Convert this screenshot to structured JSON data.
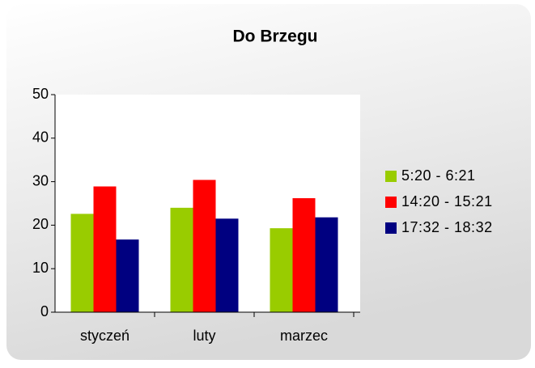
{
  "chart_data": {
    "type": "bar",
    "title": "Do Brzegu",
    "categories": [
      "styczeń",
      "luty",
      "marzec"
    ],
    "series": [
      {
        "name": "5:20 - 6:21",
        "color": "#99cc00",
        "values": [
          22.6,
          24.0,
          19.3
        ]
      },
      {
        "name": "14:20 - 15:21",
        "color": "#ff0000",
        "values": [
          28.9,
          30.4,
          26.2
        ]
      },
      {
        "name": "17:32 - 18:32",
        "color": "#000080",
        "values": [
          16.7,
          21.5,
          21.8
        ]
      }
    ],
    "ylim": [
      0,
      50
    ],
    "yticks": [
      0,
      10,
      20,
      30,
      40,
      50
    ],
    "grid": false,
    "legend": "right"
  }
}
